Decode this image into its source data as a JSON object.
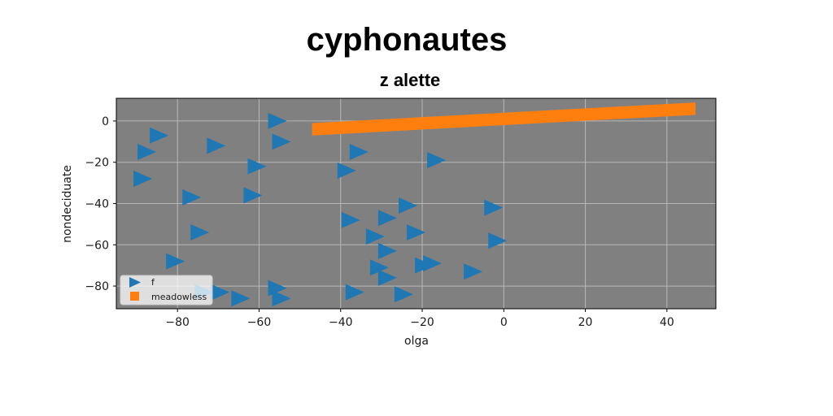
{
  "chart_data": {
    "type": "scatter",
    "title": "cyphonautes",
    "subtitle": "z alette",
    "xlabel": "olga",
    "ylabel": "nondeciduate",
    "xlim": [
      -95,
      52
    ],
    "ylim": [
      -91,
      11
    ],
    "xticks": [
      -80,
      -60,
      -40,
      -20,
      0,
      20,
      40
    ],
    "yticks": [
      0,
      -20,
      -40,
      -60,
      -80
    ],
    "grid": true,
    "background_color": "#808080",
    "legend_position": "lower-left",
    "series": [
      {
        "name": "f",
        "kind": "scatter",
        "marker": "triangle-right",
        "color": "#1f77b4",
        "points": [
          [
            -56,
            0
          ],
          [
            -85,
            -7
          ],
          [
            -88,
            -15
          ],
          [
            -71,
            -12
          ],
          [
            -55,
            -10
          ],
          [
            -89,
            -28
          ],
          [
            -61,
            -22
          ],
          [
            -39,
            -24
          ],
          [
            -36,
            -15
          ],
          [
            -17,
            -19
          ],
          [
            -77,
            -37
          ],
          [
            -62,
            -36
          ],
          [
            -24,
            -41
          ],
          [
            -3,
            -42
          ],
          [
            -38,
            -48
          ],
          [
            -29,
            -47
          ],
          [
            -75,
            -54
          ],
          [
            -32,
            -56
          ],
          [
            -22,
            -54
          ],
          [
            -2,
            -58
          ],
          [
            -29,
            -63
          ],
          [
            -81,
            -68
          ],
          [
            -31,
            -71
          ],
          [
            -20,
            -70
          ],
          [
            -18,
            -69
          ],
          [
            -8,
            -73
          ],
          [
            -29,
            -76
          ],
          [
            -56,
            -81
          ],
          [
            -74,
            -83
          ],
          [
            -70,
            -83
          ],
          [
            -65,
            -86
          ],
          [
            -55,
            -86
          ],
          [
            -37,
            -83
          ],
          [
            -25,
            -84
          ]
        ]
      },
      {
        "name": "meadowless",
        "kind": "band",
        "marker": "square",
        "color": "#ff7f0e",
        "x": [
          -47,
          47
        ],
        "upper": [
          -1,
          9
        ],
        "lower": [
          -7,
          3
        ]
      }
    ]
  }
}
